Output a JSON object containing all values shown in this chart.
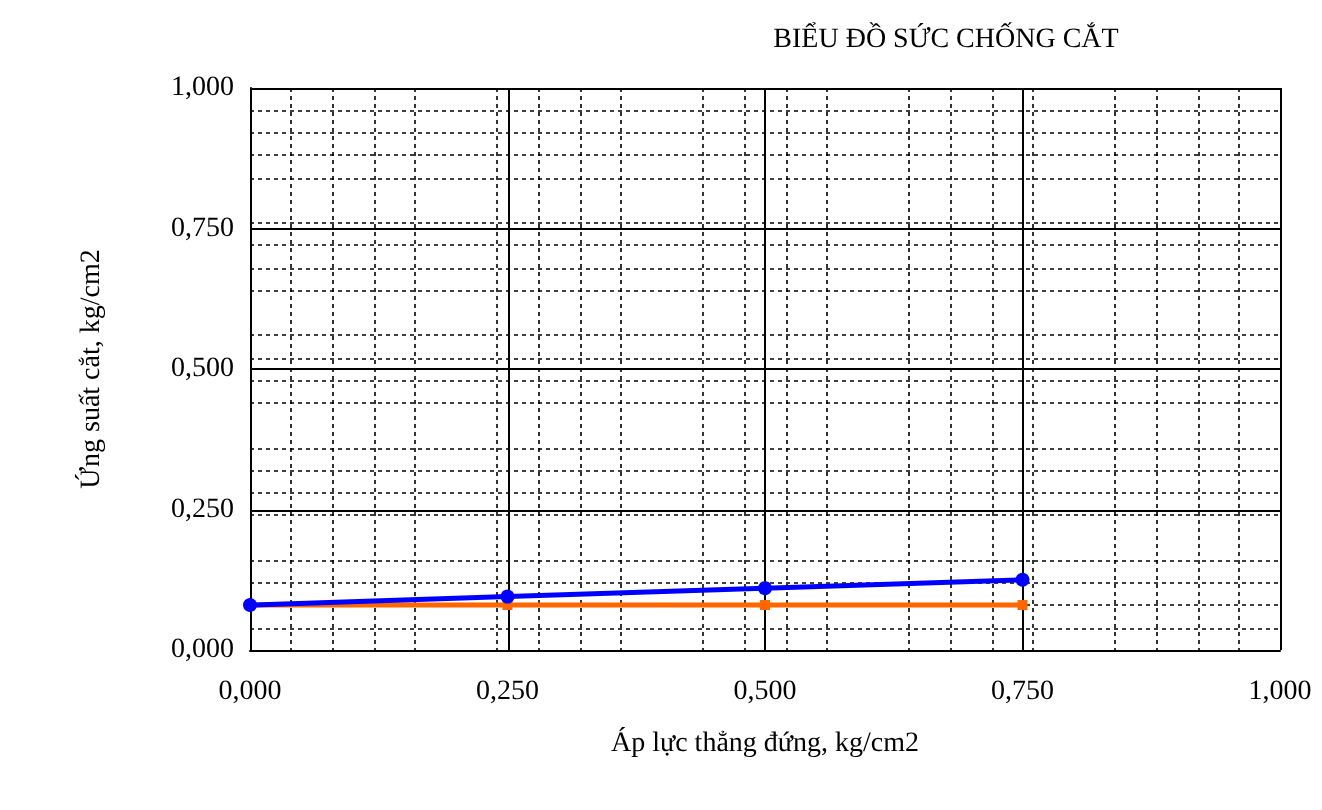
{
  "chart_data": {
    "type": "line",
    "title": "BIỂU ĐỒ SỨC CHỐNG CẮT",
    "xlabel": "Áp lực thẳng đứng, kg/cm2",
    "ylabel": "Ứng suất cắt, kg/cm2",
    "x": [
      0,
      0.25,
      0.5,
      0.75
    ],
    "series": [
      {
        "color": "#0000ff",
        "marker": "circle",
        "values": [
          0.08,
          0.095,
          0.11,
          0.125
        ]
      },
      {
        "color": "#ff6600",
        "marker": "square",
        "values": [
          0.08,
          0.08,
          0.08,
          0.08
        ]
      }
    ],
    "xlim": [
      0,
      1
    ],
    "ylim": [
      0,
      1
    ],
    "xticks": [
      {
        "value": 0,
        "label": "0,000"
      },
      {
        "value": 0.25,
        "label": "0,250"
      },
      {
        "value": 0.5,
        "label": "0,500"
      },
      {
        "value": 0.75,
        "label": "0,750"
      },
      {
        "value": 1,
        "label": "1,000"
      }
    ],
    "yticks": [
      {
        "value": 0,
        "label": "0,000"
      },
      {
        "value": 0.25,
        "label": "0,250"
      },
      {
        "value": 0.5,
        "label": "0,500"
      },
      {
        "value": 0.75,
        "label": "0,750"
      },
      {
        "value": 1,
        "label": "1,000"
      }
    ],
    "grid": true,
    "line_style": "solid"
  }
}
